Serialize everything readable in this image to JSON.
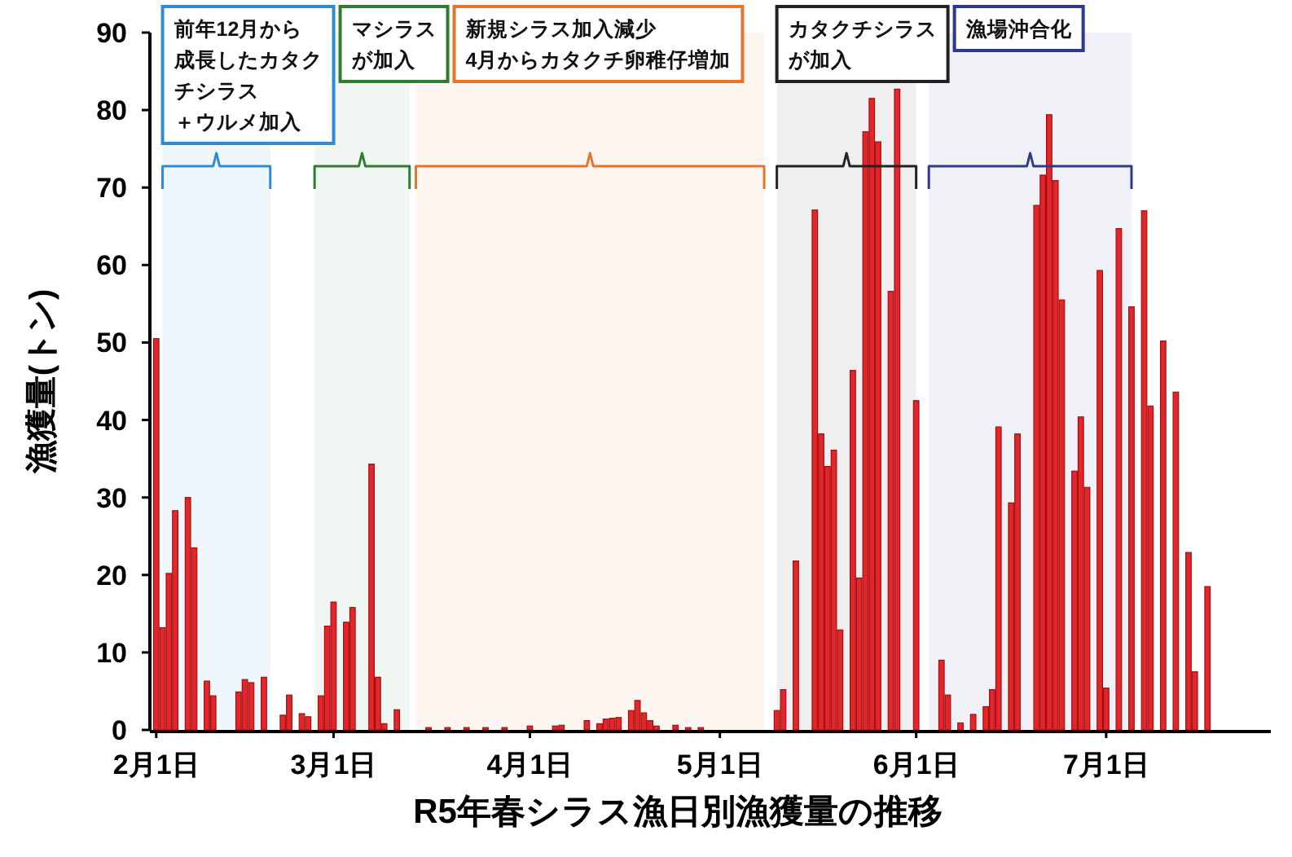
{
  "chart_data": {
    "type": "bar",
    "title": "R5年春シラス漁日別漁獲量の推移",
    "ylabel": "漁獲量(トン)",
    "x": [
      "--02-01",
      "--02-02",
      "--02-03",
      "--02-04",
      "--02-06",
      "--02-07",
      "--02-09",
      "--02-10",
      "--02-14",
      "--02-15",
      "--02-16",
      "--02-18",
      "--02-21",
      "--02-22",
      "--02-24",
      "--02-25",
      "--02-27",
      "--02-28",
      "--03-01",
      "--03-03",
      "--03-04",
      "--03-07",
      "--03-08",
      "--03-09",
      "--03-11",
      "--03-16",
      "--03-19",
      "--03-22",
      "--03-25",
      "--03-28",
      "--04-01",
      "--04-05",
      "--04-06",
      "--04-10",
      "--04-12",
      "--04-13",
      "--04-14",
      "--04-15",
      "--04-17",
      "--04-18",
      "--04-19",
      "--04-20",
      "--04-21",
      "--04-24",
      "--04-26",
      "--04-28",
      "--05-10",
      "--05-11",
      "--05-13",
      "--05-16",
      "--05-17",
      "--05-18",
      "--05-19",
      "--05-20",
      "--05-22",
      "--05-23",
      "--05-24",
      "--05-25",
      "--05-26",
      "--05-28",
      "--05-29",
      "--06-01",
      "--06-05",
      "--06-06",
      "--06-08",
      "--06-10",
      "--06-12",
      "--06-13",
      "--06-14",
      "--06-16",
      "--06-17",
      "--06-20",
      "--06-21",
      "--06-22",
      "--06-23",
      "--06-24",
      "--06-26",
      "--06-27",
      "--06-28",
      "--06-30",
      "--07-01",
      "--07-03",
      "--07-05",
      "--07-07",
      "--07-08",
      "--07-10",
      "--07-12",
      "--07-14",
      "--07-15",
      "--07-17"
    ],
    "values": [
      50.5,
      13.2,
      20.2,
      28.3,
      30.0,
      23.5,
      6.3,
      4.4,
      4.9,
      6.5,
      6.1,
      6.8,
      1.9,
      4.5,
      2.1,
      1.7,
      4.4,
      13.4,
      16.5,
      13.9,
      15.8,
      34.3,
      6.8,
      0.8,
      2.6,
      0.3,
      0.3,
      0.3,
      0.3,
      0.3,
      0.5,
      0.5,
      0.6,
      1.2,
      0.8,
      1.4,
      1.5,
      1.6,
      2.5,
      3.8,
      2.2,
      1.2,
      0.5,
      0.6,
      0.3,
      0.3,
      2.5,
      5.2,
      21.8,
      67.1,
      38.2,
      34.0,
      36.1,
      12.9,
      46.4,
      19.6,
      77.2,
      81.5,
      75.9,
      56.6,
      82.7,
      42.5,
      9.0,
      4.5,
      0.9,
      2.0,
      3.0,
      5.2,
      39.1,
      29.3,
      38.2,
      67.7,
      71.6,
      79.4,
      70.9,
      55.5,
      33.4,
      40.4,
      31.3,
      59.3,
      5.4,
      64.7,
      54.6,
      67.0,
      41.8,
      50.2,
      43.6,
      22.9,
      7.5,
      18.5
    ],
    "color": "#e3262b",
    "xlim": [
      "--01-31",
      "--07-27"
    ],
    "xticks": [
      {
        "value": "--02-01",
        "label": "2月1日"
      },
      {
        "value": "--03-01",
        "label": "3月1日"
      },
      {
        "value": "--04-01",
        "label": "4月1日"
      },
      {
        "value": "--05-01",
        "label": "5月1日"
      },
      {
        "value": "--06-01",
        "label": "6月1日"
      },
      {
        "value": "--07-01",
        "label": "7月1日"
      }
    ],
    "ylim": [
      0,
      90
    ],
    "yticks": [
      0,
      10,
      20,
      30,
      40,
      50,
      60,
      70,
      80,
      90
    ],
    "bands": [
      {
        "axis": "x",
        "from": "--02-02",
        "to": "--02-19",
        "label": "前年12月から成長したカタクチシラス＋ウルメ加入",
        "color": "#2e8bd8"
      },
      {
        "axis": "x",
        "from": "--02-26",
        "to": "--03-13",
        "label": "マシラスが加入",
        "color": "#2e7d32"
      },
      {
        "axis": "x",
        "from": "--03-14",
        "to": "--05-08",
        "label": "新規シラス加入減少4月からカタクチ卵稚仔増加",
        "color": "#e8742c"
      },
      {
        "axis": "x",
        "from": "--05-10",
        "to": "--06-01",
        "label": "カタクチシラスが加入",
        "color": "#222222"
      },
      {
        "axis": "x",
        "from": "--06-03",
        "to": "--07-05",
        "label": "漁場沖合化",
        "color": "#2b3a8c"
      }
    ]
  }
}
